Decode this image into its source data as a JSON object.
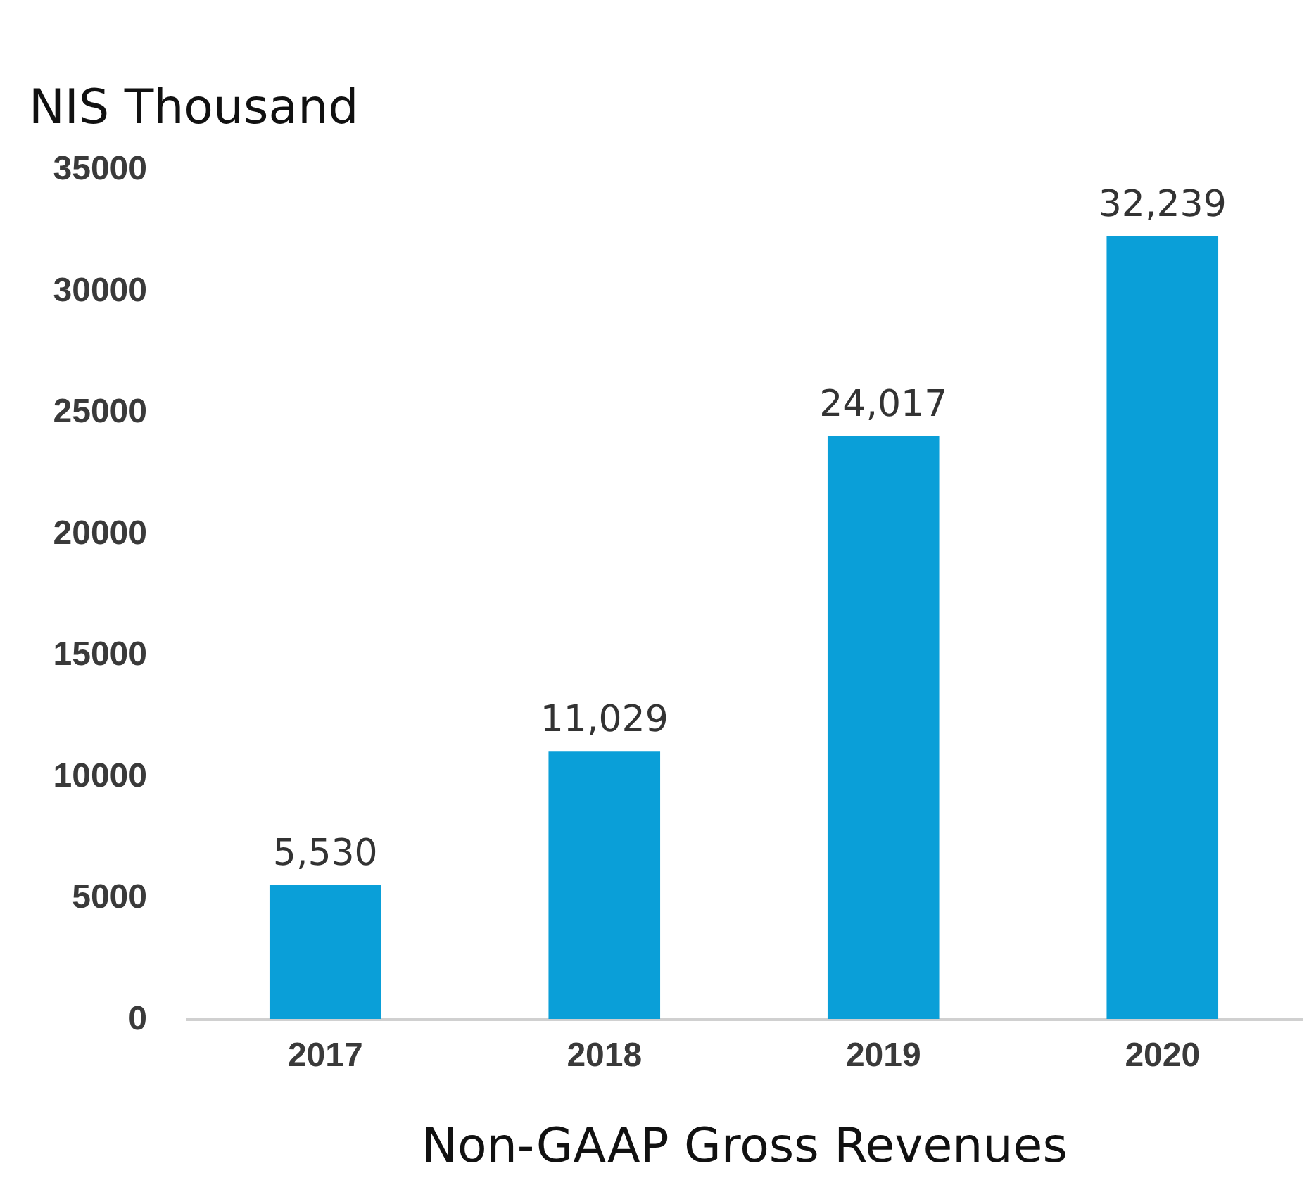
{
  "chart_data": {
    "type": "bar",
    "ylabel": "NIS Thousand",
    "xlabel": "Non-GAAP Gross Revenues",
    "categories": [
      "2017",
      "2018",
      "2019",
      "2020"
    ],
    "values": [
      5530,
      11029,
      24017,
      32239
    ],
    "value_labels": [
      "5,530",
      "11,029",
      "24,017",
      "32,239"
    ],
    "color": "#0a9fd8",
    "ylim": [
      0,
      35000
    ],
    "yticks": [
      0,
      5000,
      10000,
      15000,
      20000,
      25000,
      30000,
      35000
    ],
    "grid": false
  }
}
